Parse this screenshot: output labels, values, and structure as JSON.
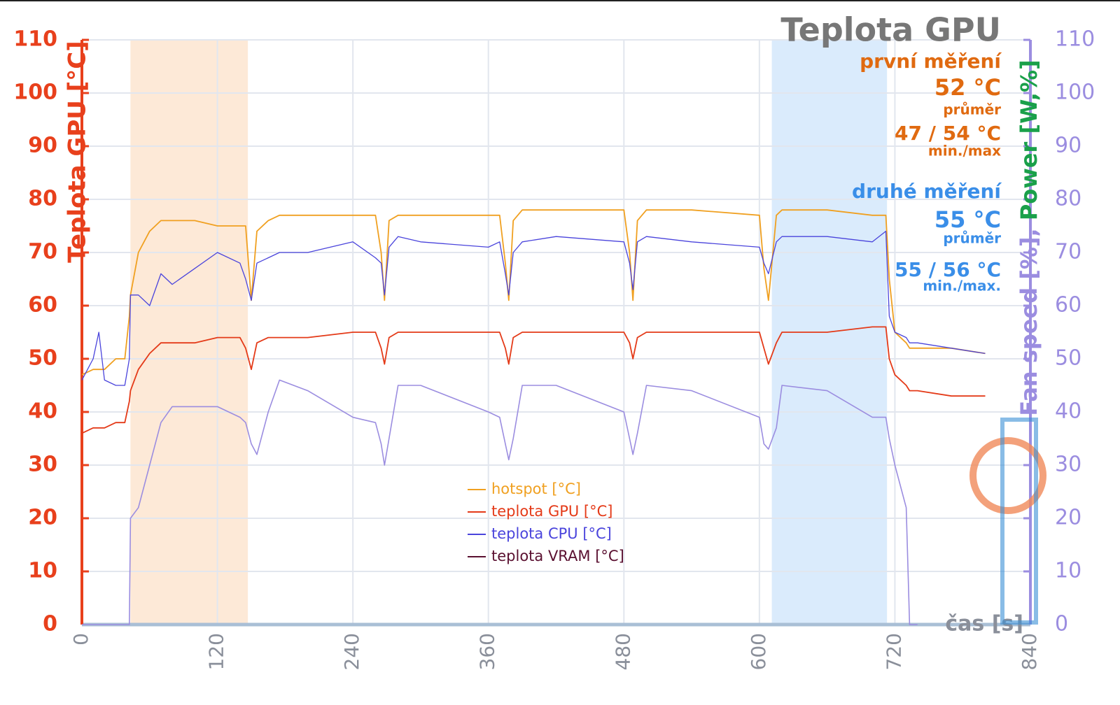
{
  "chart_data": {
    "type": "line",
    "title": "Teplota GPU",
    "y_label": "Teplota GPU [°C]",
    "y2_label_parts": [
      {
        "text": "Fan speed [%]",
        "color": "#9b8de0"
      },
      {
        "text": ", ",
        "color": "#9b8de0"
      },
      {
        "text": "Power [W,%]",
        "color": "#1aa04a"
      }
    ],
    "x_label": "čas [s]",
    "annotations": [
      {
        "text": "první měření",
        "color": "#e06a10"
      },
      {
        "text": "52 °C",
        "color": "#e06a10"
      },
      {
        "text": "průměr",
        "color": "#e06a10"
      },
      {
        "text": "47 / 54 °C",
        "color": "#e06a10"
      },
      {
        "text": "min./max",
        "color": "#e06a10"
      },
      {
        "text": "druhé měření",
        "color": "#3a8ee8"
      },
      {
        "text": "55 °C",
        "color": "#3a8ee8"
      },
      {
        "text": "průměr",
        "color": "#3a8ee8"
      },
      {
        "text": "55 / 56 °C",
        "color": "#3a8ee8"
      },
      {
        "text": "min./max.",
        "color": "#3a8ee8"
      }
    ],
    "shaded_regions": [
      {
        "xlim": [
          43,
          147
        ],
        "color": "#fde5d0"
      },
      {
        "xlim": [
          611,
          713
        ],
        "color": "#d4e8fb"
      }
    ],
    "x": [
      0,
      10,
      15,
      20,
      30,
      38,
      42,
      43,
      50,
      60,
      70,
      80,
      100,
      120,
      140,
      145,
      150,
      155,
      165,
      175,
      200,
      240,
      260,
      265,
      268,
      272,
      280,
      300,
      360,
      370,
      375,
      378,
      382,
      390,
      420,
      480,
      485,
      488,
      492,
      500,
      540,
      600,
      604,
      608,
      615,
      620,
      660,
      700,
      712,
      715,
      720,
      730,
      733,
      740,
      770,
      800
    ],
    "series": [
      {
        "name": "hotspot [°C]",
        "color": "#f0a020",
        "values": [
          47,
          48,
          48,
          48,
          50,
          50,
          58,
          62,
          70,
          74,
          76,
          76,
          76,
          75,
          75,
          75,
          61,
          74,
          76,
          77,
          77,
          77,
          77,
          70,
          61,
          76,
          77,
          77,
          77,
          77,
          68,
          61,
          76,
          78,
          78,
          78,
          70,
          61,
          76,
          78,
          78,
          77,
          67,
          61,
          77,
          78,
          78,
          77,
          77,
          65,
          55,
          53,
          52,
          52,
          52,
          51
        ]
      },
      {
        "name": "teplota GPU [°C]",
        "color": "#e43a18",
        "values": [
          36,
          37,
          37,
          37,
          38,
          38,
          42,
          44,
          48,
          51,
          53,
          53,
          53,
          54,
          54,
          52,
          48,
          53,
          54,
          54,
          54,
          55,
          55,
          52,
          49,
          54,
          55,
          55,
          55,
          55,
          52,
          49,
          54,
          55,
          55,
          55,
          53,
          50,
          54,
          55,
          55,
          55,
          52,
          49,
          53,
          55,
          55,
          56,
          56,
          50,
          47,
          45,
          44,
          44,
          43,
          43
        ]
      },
      {
        "name": "teplota CPU [°C]",
        "color": "#4a44dc",
        "values": [
          46,
          50,
          55,
          46,
          45,
          45,
          50,
          62,
          62,
          60,
          66,
          64,
          67,
          70,
          68,
          65,
          61,
          68,
          69,
          70,
          70,
          72,
          69,
          68,
          62,
          71,
          73,
          72,
          71,
          72,
          66,
          62,
          70,
          72,
          73,
          72,
          68,
          63,
          72,
          73,
          72,
          71,
          68,
          66,
          72,
          73,
          73,
          72,
          74,
          58,
          55,
          54,
          53,
          53,
          52,
          51
        ]
      },
      {
        "name": "teplota VRAM [°C]",
        "color": "#5a1030",
        "values": [
          null,
          null,
          null,
          null,
          null,
          null,
          null,
          null,
          null,
          null,
          null,
          null,
          null,
          null,
          null,
          null,
          null,
          null,
          null,
          null,
          null,
          null,
          null,
          null,
          null,
          null,
          null,
          null,
          null,
          null,
          null,
          null,
          null,
          null,
          null,
          null,
          null,
          null,
          null,
          null,
          null,
          null,
          null,
          null,
          null,
          null,
          null,
          null,
          null,
          null,
          null,
          null,
          null,
          null,
          null,
          null
        ]
      }
    ],
    "y2_series": {
      "color": "#9b8de0",
      "axis": "y2",
      "values": [
        0,
        0,
        0,
        0,
        0,
        0,
        0,
        20,
        22,
        30,
        38,
        41,
        41,
        41,
        39,
        38,
        34,
        32,
        40,
        46,
        44,
        39,
        38,
        34,
        30,
        35,
        45,
        45,
        40,
        39,
        34,
        31,
        35,
        45,
        45,
        40,
        35,
        32,
        36,
        45,
        44,
        39,
        34,
        33,
        37,
        45,
        44,
        39,
        39,
        35,
        30,
        22,
        0,
        0,
        null,
        null
      ]
    },
    "xlim": [
      0,
      840
    ],
    "xticks": [
      0,
      120,
      240,
      360,
      480,
      600,
      720,
      840
    ],
    "ylim": [
      0,
      110
    ],
    "yticks": [
      0,
      10,
      20,
      30,
      40,
      50,
      60,
      70,
      80,
      90,
      100,
      110
    ],
    "y2lim": [
      0,
      110
    ],
    "y2ticks": [
      0,
      10,
      20,
      30,
      40,
      50,
      60,
      70,
      80,
      90,
      100,
      110
    ],
    "grid": true,
    "y_axis_color": "#e8401c",
    "y2_axis_color": "#9b8de0"
  }
}
